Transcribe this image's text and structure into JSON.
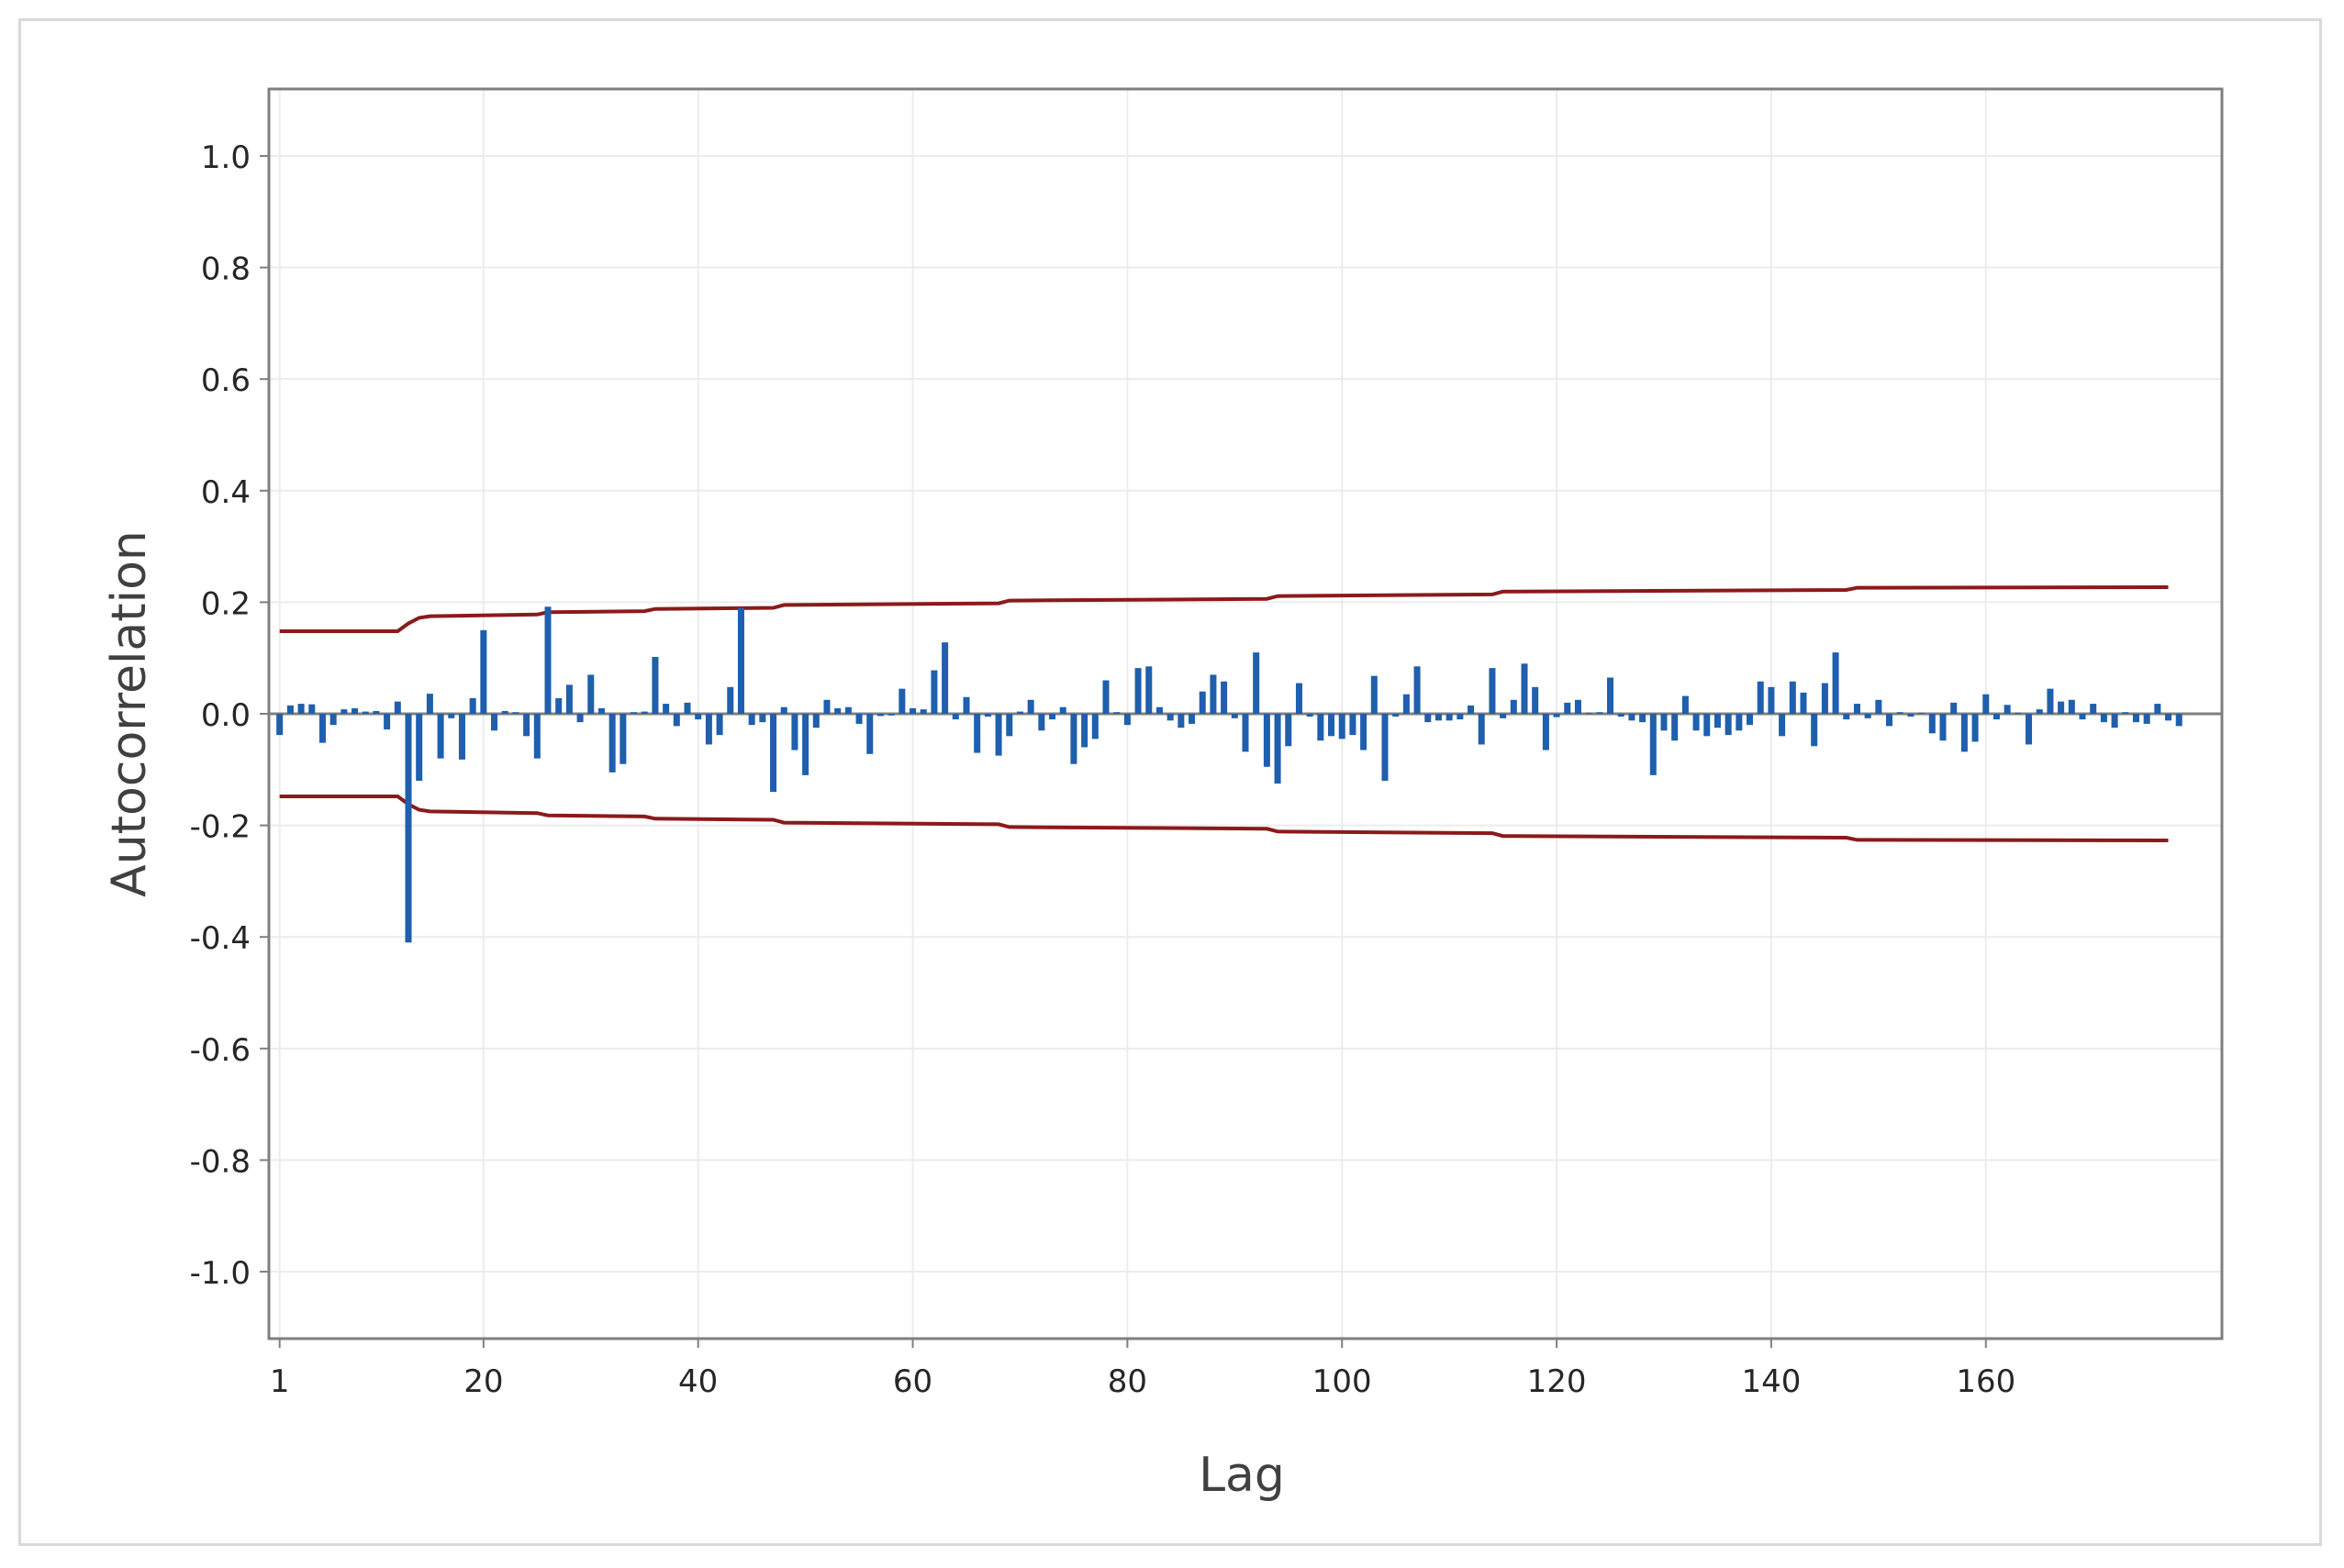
{
  "chart_data": {
    "type": "bar",
    "xlabel": "Lag",
    "ylabel": "Autocorrelation",
    "xlim": [
      0,
      182
    ],
    "ylim": [
      -1.12,
      1.12
    ],
    "x_ticks": [
      1,
      20,
      40,
      60,
      80,
      100,
      120,
      140,
      160
    ],
    "x_tick_labels": [
      "1",
      "20",
      "40",
      "60",
      "80",
      "100",
      "120",
      "140",
      "160"
    ],
    "y_ticks": [
      1.0,
      0.8,
      0.6,
      0.4,
      0.2,
      0.0,
      -0.2,
      -0.4,
      -0.6,
      -0.8,
      -1.0
    ],
    "y_tick_labels": [
      "1.0",
      "0.8",
      "0.6",
      "0.4",
      "0.2",
      "0.0",
      "-0.2",
      "-0.4",
      "-0.6",
      "-0.8",
      "-1.0"
    ],
    "grid": true,
    "bar_color": "#1f5fad",
    "limit_color": "#8b1a1a",
    "zero_line_color": "#7f7f7f",
    "series": [
      {
        "values": [
          -0.038,
          0.015,
          0.018,
          0.017,
          -0.052,
          -0.02,
          0.008,
          0.01,
          0.004,
          0.005,
          -0.028,
          0.022,
          -0.41,
          -0.12,
          0.036,
          -0.08,
          -0.008,
          -0.082,
          0.028,
          0.15,
          -0.03,
          0.005,
          0.003,
          -0.04,
          -0.08,
          0.192,
          0.028,
          0.052,
          -0.015,
          0.07,
          0.01,
          -0.105,
          -0.09,
          0.003,
          0.004,
          0.102,
          0.018,
          -0.022,
          0.02,
          -0.01,
          -0.055,
          -0.038,
          0.048,
          0.19,
          -0.02,
          -0.015,
          -0.14,
          0.012,
          -0.065,
          -0.11,
          -0.025,
          0.025,
          0.01,
          0.012,
          -0.018,
          -0.072,
          -0.004,
          -0.003,
          0.045,
          0.01,
          0.008,
          0.078,
          0.128,
          -0.01,
          0.03,
          -0.07,
          -0.005,
          -0.075,
          -0.04,
          0.004,
          0.025,
          -0.03,
          -0.01,
          0.012,
          -0.09,
          -0.06,
          -0.045,
          0.06,
          0.003,
          -0.02,
          0.082,
          0.085,
          0.012,
          -0.012,
          -0.025,
          -0.018,
          0.04,
          0.07,
          0.058,
          -0.008,
          -0.068,
          0.11,
          -0.095,
          -0.125,
          -0.058,
          0.055,
          -0.005,
          -0.048,
          -0.04,
          -0.045,
          -0.038,
          -0.065,
          0.068,
          -0.12,
          -0.005,
          0.035,
          0.085,
          -0.015,
          -0.012,
          -0.012,
          -0.01,
          0.015,
          -0.055,
          0.082,
          -0.008,
          0.025,
          0.09,
          0.048,
          -0.065,
          -0.006,
          0.02,
          0.025,
          0.002,
          0.003,
          0.065,
          -0.005,
          -0.012,
          -0.015,
          -0.11,
          -0.03,
          -0.048,
          0.032,
          -0.03,
          -0.04,
          -0.025,
          -0.038,
          -0.03,
          -0.02,
          0.058,
          0.048,
          -0.04,
          0.058,
          0.038,
          -0.058,
          0.055,
          0.11,
          -0.01,
          0.018,
          -0.008,
          0.025,
          -0.022,
          0.003,
          -0.005,
          0.002,
          -0.035,
          -0.048,
          0.02,
          -0.068,
          -0.05,
          0.035,
          -0.01,
          0.016,
          0.002,
          -0.055,
          0.008,
          0.045,
          0.022,
          0.025,
          -0.01,
          0.018,
          -0.015,
          -0.025,
          0.003,
          -0.015,
          -0.018,
          0.018,
          -0.012,
          -0.022
        ]
      }
    ],
    "limits": {
      "upper": [
        [
          1,
          0.148
        ],
        [
          12,
          0.148
        ],
        [
          13,
          0.162
        ],
        [
          14,
          0.172
        ],
        [
          15,
          0.175
        ],
        [
          25,
          0.178
        ],
        [
          26,
          0.182
        ],
        [
          35,
          0.184
        ],
        [
          36,
          0.188
        ],
        [
          47,
          0.19
        ],
        [
          48,
          0.195
        ],
        [
          68,
          0.198
        ],
        [
          69,
          0.203
        ],
        [
          93,
          0.206
        ],
        [
          94,
          0.211
        ],
        [
          114,
          0.214
        ],
        [
          115,
          0.219
        ],
        [
          147,
          0.222
        ],
        [
          148,
          0.226
        ],
        [
          177,
          0.227
        ]
      ],
      "lower": [
        [
          1,
          -0.148
        ],
        [
          12,
          -0.148
        ],
        [
          13,
          -0.162
        ],
        [
          14,
          -0.172
        ],
        [
          15,
          -0.175
        ],
        [
          25,
          -0.178
        ],
        [
          26,
          -0.182
        ],
        [
          35,
          -0.184
        ],
        [
          36,
          -0.188
        ],
        [
          47,
          -0.19
        ],
        [
          48,
          -0.195
        ],
        [
          68,
          -0.198
        ],
        [
          69,
          -0.203
        ],
        [
          93,
          -0.206
        ],
        [
          94,
          -0.211
        ],
        [
          114,
          -0.214
        ],
        [
          115,
          -0.219
        ],
        [
          147,
          -0.222
        ],
        [
          148,
          -0.226
        ],
        [
          177,
          -0.227
        ]
      ]
    }
  }
}
